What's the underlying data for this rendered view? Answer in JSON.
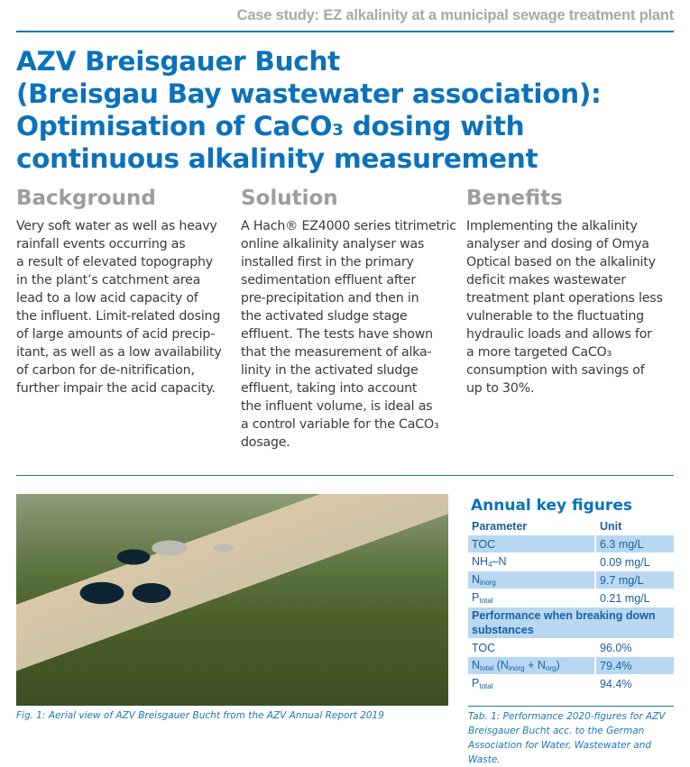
{
  "header": {
    "kicker": "Case study: EZ alkalinity at a municipal sewage treatment plant"
  },
  "title": {
    "lines": [
      "AZV Breisgauer Bucht",
      "(Breisgau Bay wastewater association):",
      "Optimisation of CaCO₃ dosing with",
      "continuous alkalinity measurement"
    ]
  },
  "columns": [
    {
      "heading": "Background",
      "lines": [
        "Very soft water as well as heavy",
        "rainfall events occurring as",
        "a result of elevated topography",
        "in the plant’s catchment area",
        "lead to a low acid capacity of",
        "the influent. Limit-related dosing",
        "of large amounts of acid precip-",
        "itant, as well as a low availability",
        "of carbon for de-nitrification,",
        "further impair the acid capacity."
      ]
    },
    {
      "heading": "Solution",
      "lines": [
        "A Hach® EZ4000 series titrimetric",
        "online alkalinity analyser was",
        "installed first in the primary",
        "sedimentation effluent after",
        "pre-precipitation and then in",
        "the activated sludge stage",
        "effluent. The tests have shown",
        "that the measurement of alka-",
        "linity in the activated sludge",
        "effluent, taking into account",
        "the influent volume, is ideal as",
        "a control variable for the CaCO₃",
        "dosage."
      ]
    },
    {
      "heading": "Benefits",
      "lines": [
        "Implementing the alkalinity",
        "analyser and dosing of Omya",
        "Optical based on the alkalinity",
        "deficit makes wastewater",
        "treatment plant operations less",
        "vulnerable to the fluctuating",
        "hydraulic loads and allows for",
        "a more targeted CaCO₃",
        "consumption with savings of",
        "up to 30%."
      ]
    }
  ],
  "figure": {
    "caption": "Fig. 1: Aerial view of AZV Breisgauer Bucht from the AZV Annual Report 2019"
  },
  "key_figures": {
    "title": "Annual key figures",
    "col_parameter": "Parameter",
    "col_unit": "Unit",
    "rows": [
      {
        "param": "TOC",
        "sub": "",
        "value": "6.3 mg/L"
      },
      {
        "param": "NH",
        "sub": "4",
        "suffix": "–N",
        "value": "0.09 mg/L"
      },
      {
        "param": "N",
        "sub": "inorg",
        "value": "9.7 mg/L"
      },
      {
        "param": "P",
        "sub": "total",
        "value": "0.21 mg/L"
      }
    ],
    "section": "Performance when breaking down substances",
    "perf_rows": [
      {
        "param": "TOC",
        "value": "96.0%"
      },
      {
        "param": "Ntotal (Ninorg + Norg)",
        "value": "79.4%"
      },
      {
        "param": "Ptotal",
        "value": "94.4%"
      }
    ],
    "caption": "Tab. 1: Performance 2020-figures for AZV Breisgauer Bucht acc. to the German Association for Water, Wastewater and Waste."
  },
  "colors": {
    "accent": "#0a72ba",
    "heading_gray": "#9d9d9d",
    "table_fill": "#b8d8f2"
  }
}
